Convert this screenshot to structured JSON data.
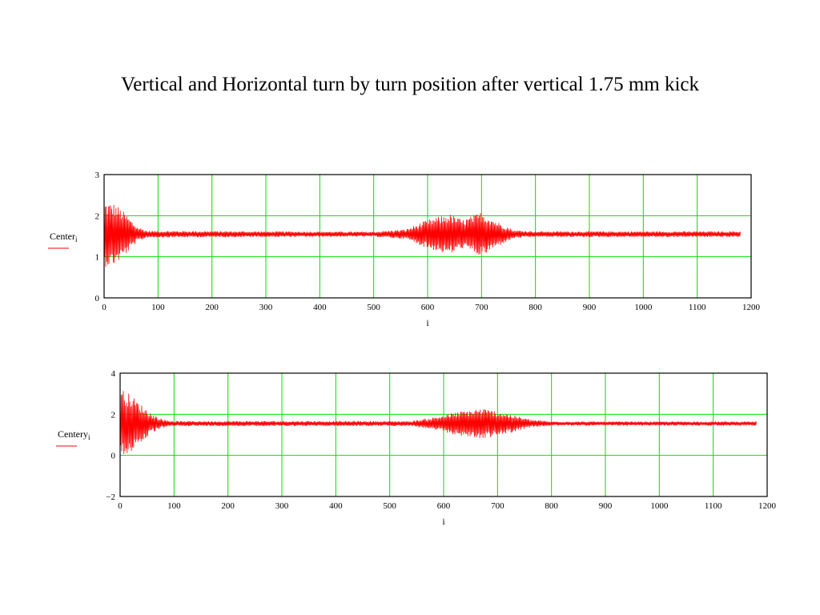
{
  "slide": {
    "title": "Vertical and Horizontal turn by turn position after vertical 1.75 mm kick"
  },
  "colors": {
    "trace": "#ff0000",
    "grid": "#00e000",
    "frame": "#000000"
  },
  "chart_data": [
    {
      "type": "line",
      "title": "",
      "xlabel": "i",
      "ylabel": "Center",
      "ylabel_sub": "i",
      "xlim": [
        0,
        1200
      ],
      "ylim": [
        0,
        3
      ],
      "xticks": [
        0,
        100,
        200,
        300,
        400,
        500,
        600,
        700,
        800,
        900,
        1000,
        1100,
        1200
      ],
      "yticks": [
        0,
        1,
        2,
        3
      ],
      "grid": true,
      "series": [
        {
          "baseline": 1.55,
          "x_end": 1180,
          "envelope": [
            {
              "x": 0,
              "amp": 0.8
            },
            {
              "x": 20,
              "amp": 0.75
            },
            {
              "x": 40,
              "amp": 0.5
            },
            {
              "x": 60,
              "amp": 0.2
            },
            {
              "x": 80,
              "amp": 0.08
            },
            {
              "x": 500,
              "amp": 0.06
            },
            {
              "x": 560,
              "amp": 0.12
            },
            {
              "x": 600,
              "amp": 0.35
            },
            {
              "x": 640,
              "amp": 0.5
            },
            {
              "x": 665,
              "amp": 0.35
            },
            {
              "x": 700,
              "amp": 0.55
            },
            {
              "x": 730,
              "amp": 0.3
            },
            {
              "x": 760,
              "amp": 0.1
            },
            {
              "x": 800,
              "amp": 0.07
            },
            {
              "x": 1180,
              "amp": 0.07
            }
          ]
        }
      ]
    },
    {
      "type": "line",
      "title": "",
      "xlabel": "i",
      "ylabel": "Centery",
      "ylabel_sub": "i",
      "xlim": [
        0,
        1200
      ],
      "ylim": [
        -2,
        4
      ],
      "xticks": [
        0,
        100,
        200,
        300,
        400,
        500,
        600,
        700,
        800,
        900,
        1000,
        1100,
        1200
      ],
      "yticks": [
        -2,
        0,
        2,
        4
      ],
      "grid": true,
      "series": [
        {
          "baseline": 1.55,
          "x_end": 1180,
          "envelope": [
            {
              "x": 0,
              "amp": 1.75
            },
            {
              "x": 20,
              "amp": 1.4
            },
            {
              "x": 40,
              "amp": 0.9
            },
            {
              "x": 60,
              "amp": 0.45
            },
            {
              "x": 80,
              "amp": 0.2
            },
            {
              "x": 100,
              "amp": 0.12
            },
            {
              "x": 540,
              "amp": 0.12
            },
            {
              "x": 580,
              "amp": 0.3
            },
            {
              "x": 630,
              "amp": 0.6
            },
            {
              "x": 670,
              "amp": 0.75
            },
            {
              "x": 710,
              "amp": 0.55
            },
            {
              "x": 760,
              "amp": 0.2
            },
            {
              "x": 800,
              "amp": 0.1
            },
            {
              "x": 1180,
              "amp": 0.1
            }
          ]
        }
      ]
    }
  ]
}
